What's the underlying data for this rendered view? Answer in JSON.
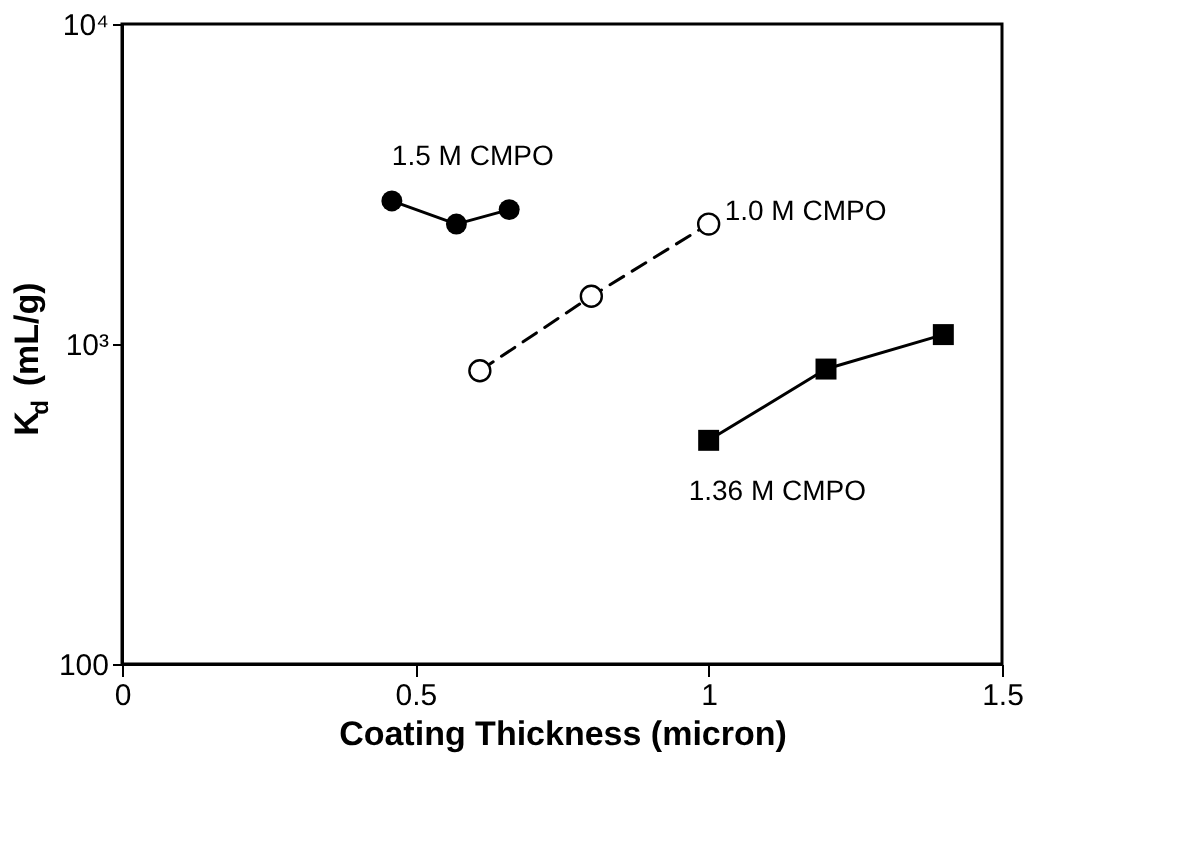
{
  "chart_data": {
    "type": "line",
    "xlabel": "Coating Thickness (micron)",
    "ylabel": "K$_{d}$ (mL/g)",
    "log": "y",
    "xlim": [
      0,
      1.5
    ],
    "xticks": [
      0,
      0.5,
      1,
      1.5
    ],
    "ylim": [
      100,
      10000
    ],
    "yticks": [
      {
        "value": 100,
        "label": "100"
      },
      {
        "value": 1000,
        "label": "10³"
      },
      {
        "value": 10000,
        "label": "10⁴"
      }
    ],
    "grid": false,
    "legend": false,
    "series": [
      {
        "name": "1.5 M CMPO",
        "color": "#000000",
        "marker": "circle",
        "line_style": "solid",
        "x": [
          0.46,
          0.57,
          0.66
        ],
        "values": [
          2800,
          2370,
          2630
        ]
      },
      {
        "name": "1.0 M CMPO",
        "color": "#000000",
        "marker": "circle_open",
        "line_style": "dashed",
        "x": [
          0.61,
          0.8,
          1.0
        ],
        "values": [
          825,
          1410,
          2370
        ]
      },
      {
        "name": "1.36 M CMPO",
        "color": "#000000",
        "marker": "square",
        "line_style": "solid",
        "x": [
          1.0,
          1.2,
          1.4
        ],
        "values": [
          500,
          835,
          1070
        ]
      }
    ]
  }
}
